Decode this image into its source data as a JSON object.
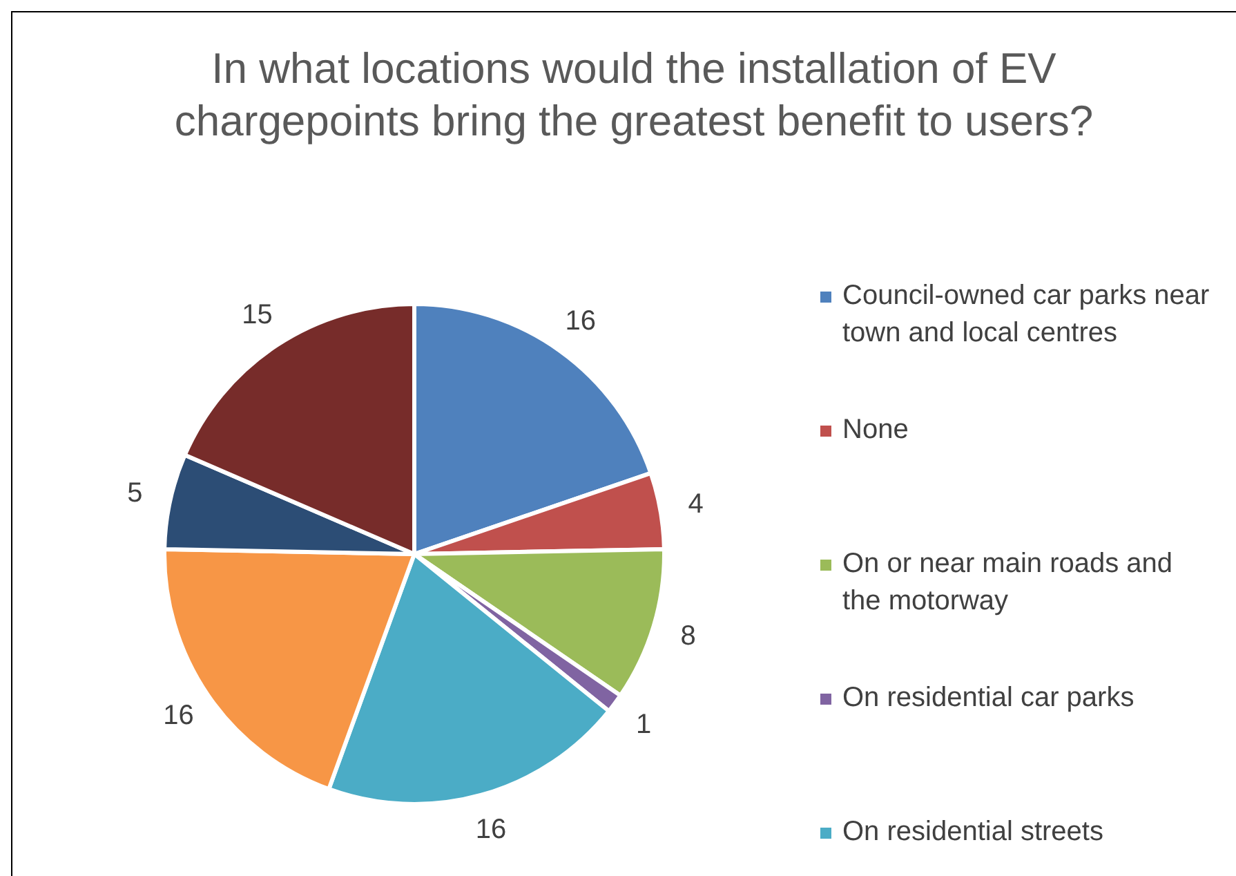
{
  "chart_data": {
    "type": "pie",
    "title": "In what locations would the installation of EV chargepoints bring the greatest benefit to users?",
    "categories": [
      "Council-owned car parks near town and local centres",
      "None",
      "On or near main roads and the motorway",
      "On residential car parks",
      "On residential streets",
      null,
      null,
      null
    ],
    "values": [
      16,
      4,
      8,
      1,
      16,
      16,
      5,
      15
    ],
    "colors": [
      "#4f81bd",
      "#c0504d",
      "#9bbb59",
      "#8064a2",
      "#4bacc6",
      "#f79646",
      "#2c4d75",
      "#772c2a"
    ],
    "data_labels": true,
    "legend": "right"
  }
}
